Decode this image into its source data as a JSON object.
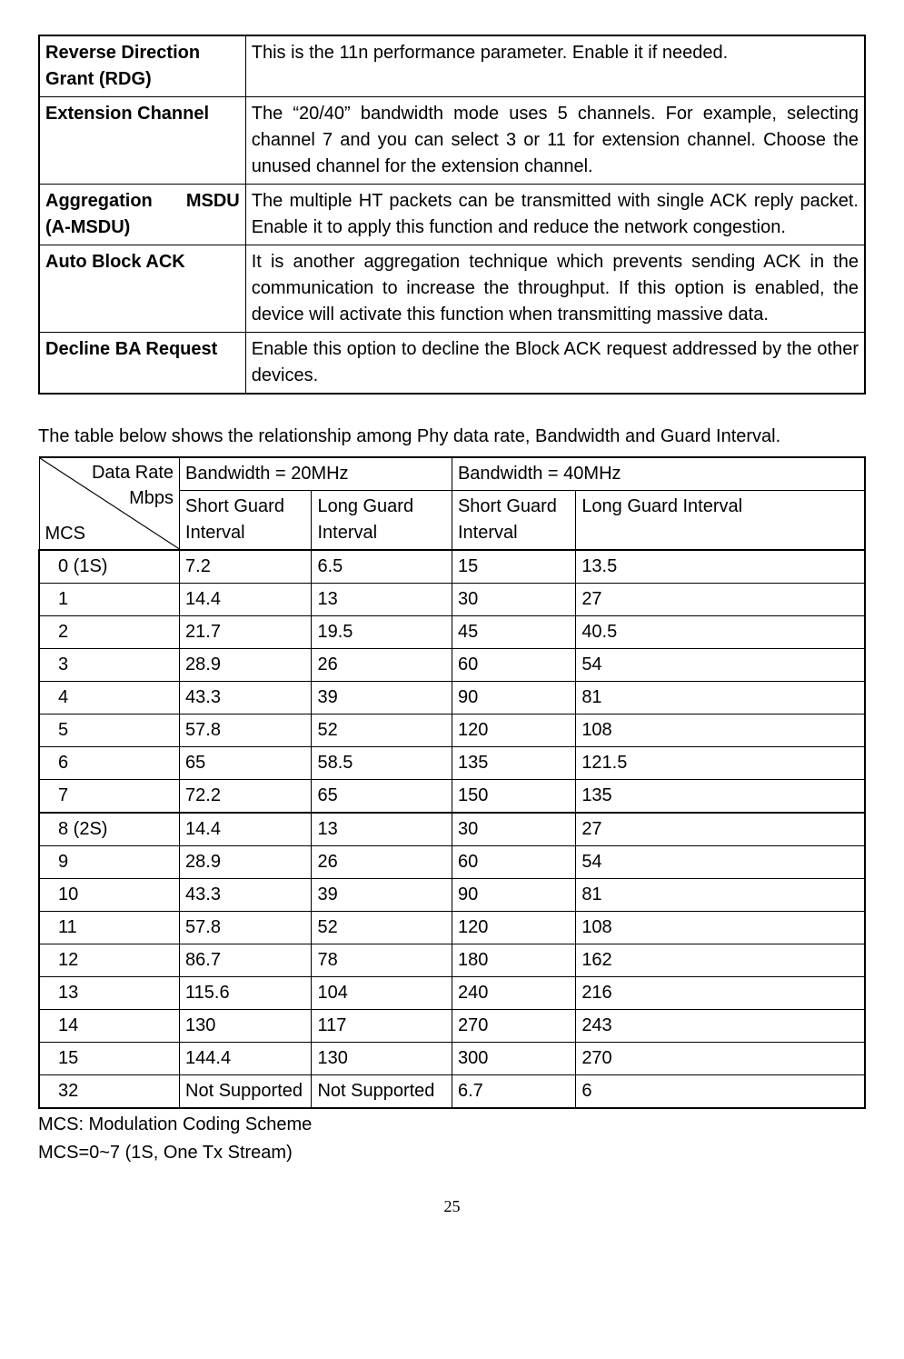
{
  "definitions": [
    {
      "term": "Reverse Direction Grant (RDG)",
      "desc": "This is the 11n performance parameter. Enable it if needed."
    },
    {
      "term": "Extension Channel",
      "desc": "The “20/40” bandwidth mode uses 5 channels. For example, selecting channel 7 and you can select 3 or 11 for extension channel. Choose the unused channel for the extension channel."
    },
    {
      "term_a": "Aggregation",
      "term_b": "MSDU",
      "term_c": "(A-MSDU)",
      "desc": "The multiple HT packets can be transmitted with single ACK reply packet. Enable it to apply this function and reduce the network congestion."
    },
    {
      "term": "Auto Block ACK",
      "desc": "It is another aggregation technique which prevents sending ACK in the communication to increase the throughput. If this option is enabled, the device will activate this function when transmitting massive data."
    },
    {
      "term": "Decline BA Request",
      "desc": "Enable this option to decline the Block ACK request addressed by the other devices."
    }
  ],
  "intro": "The table below shows the relationship among Phy data rate, Bandwidth and Guard Interval.",
  "rate_header": {
    "diag_top": "Data Rate",
    "diag_mid": "Mbps",
    "diag_bot": "MCS",
    "bw20": "Bandwidth = 20MHz",
    "bw40": "Bandwidth = 40MHz",
    "sgi": "Short Guard Interval",
    "lgi": "Long Guard Interval"
  },
  "rate_rows": [
    {
      "mcs": "0 (1S)",
      "a": "7.2",
      "b": "6.5",
      "c": "15",
      "d": "13.5",
      "sect": true
    },
    {
      "mcs": "1",
      "a": "14.4",
      "b": "13",
      "c": "30",
      "d": "27"
    },
    {
      "mcs": "2",
      "a": "21.7",
      "b": "19.5",
      "c": "45",
      "d": "40.5"
    },
    {
      "mcs": "3",
      "a": "28.9",
      "b": "26",
      "c": "60",
      "d": "54"
    },
    {
      "mcs": "4",
      "a": "43.3",
      "b": "39",
      "c": "90",
      "d": "81"
    },
    {
      "mcs": "5",
      "a": "57.8",
      "b": "52",
      "c": "120",
      "d": "108"
    },
    {
      "mcs": "6",
      "a": "65",
      "b": "58.5",
      "c": "135",
      "d": "121.5"
    },
    {
      "mcs": "7",
      "a": "72.2",
      "b": "65",
      "c": "150",
      "d": "135"
    },
    {
      "mcs": "8 (2S)",
      "a": "14.4",
      "b": "13",
      "c": "30",
      "d": "27",
      "sect": true
    },
    {
      "mcs": "9",
      "a": "28.9",
      "b": "26",
      "c": "60",
      "d": "54"
    },
    {
      "mcs": "10",
      "a": "43.3",
      "b": "39",
      "c": "90",
      "d": "81"
    },
    {
      "mcs": "11",
      "a": "57.8",
      "b": "52",
      "c": "120",
      "d": "108"
    },
    {
      "mcs": "12",
      "a": "86.7",
      "b": "78",
      "c": "180",
      "d": "162"
    },
    {
      "mcs": "13",
      "a": "115.6",
      "b": "104",
      "c": "240",
      "d": "216"
    },
    {
      "mcs": "14",
      "a": "130",
      "b": "117",
      "c": "270",
      "d": "243"
    },
    {
      "mcs": "15",
      "a": "144.4",
      "b": "130",
      "c": "300",
      "d": "270"
    },
    {
      "mcs": "32",
      "a": "Not Supported",
      "b": "Not Supported",
      "c": "6.7",
      "d": "6",
      "last": true
    }
  ],
  "notes": {
    "l1": "MCS: Modulation Coding Scheme",
    "l2": "MCS=0~7 (1S, One Tx Stream)"
  },
  "page": "25"
}
